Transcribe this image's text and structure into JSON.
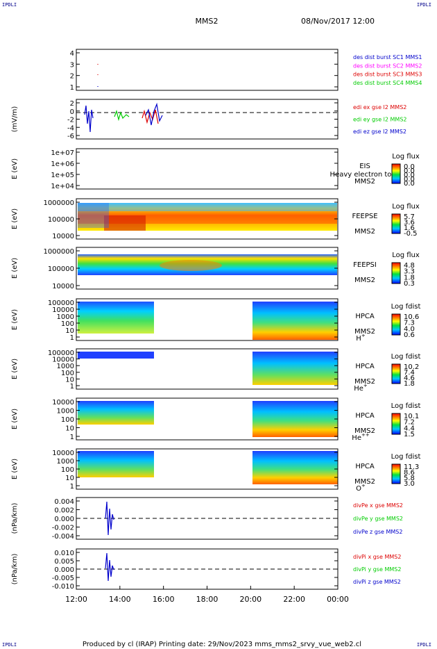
{
  "corners": {
    "top_left": "IPDLI",
    "top_right": "IPDLI",
    "bottom_left": "IPDLI",
    "bottom_right": "IPDLI"
  },
  "header": {
    "title": "MMS2",
    "datetime": "08/Nov/2017 12:00"
  },
  "footer": {
    "text": "Produced by cl (IRAP)   Printing date: 29/Nov/2023   mms_mms2_srvy_vue_web2.cl"
  },
  "colors": {
    "blue": "#0000cc",
    "magenta": "#ff00ff",
    "red": "#dd0000",
    "green": "#00cc00",
    "axis": "#000000"
  },
  "chart_data": [
    {
      "type": "line",
      "title": "",
      "ylabel": "",
      "yticks": [
        "4",
        "3",
        "2",
        "1"
      ],
      "ylim": [
        0.5,
        4.5
      ],
      "legend": [
        {
          "name": "des dist burst SC1 MMS1",
          "color": "#0000cc"
        },
        {
          "name": "des dist burst SC2 MMS2",
          "color": "#ff00ff"
        },
        {
          "name": "des dist burst SC3 MMS3",
          "color": "#dd0000"
        },
        {
          "name": "des dist burst SC4 MMS4",
          "color": "#00cc00"
        }
      ]
    },
    {
      "type": "line",
      "ylabel": "(mV/m)",
      "yticks": [
        "2",
        "0",
        "-2",
        "-4",
        "-6"
      ],
      "ylim": [
        -7,
        3.5
      ],
      "legend": [
        {
          "name": "edi ex gse l2 MMS2",
          "color": "#dd0000"
        },
        {
          "name": "edi ey gse l2 MMS2",
          "color": "#00cc00"
        },
        {
          "name": "edi ez gse l2 MMS2",
          "color": "#0000cc"
        }
      ]
    },
    {
      "type": "heatmap",
      "ylabel": "E (eV)",
      "yticks": [
        "1e+07",
        "1e+06",
        "1e+05",
        "1e+04"
      ],
      "labels": [
        "EIS",
        "MMS2"
      ],
      "overlay_text": "Heavy electron to",
      "colorbar_title": "Log flux",
      "colorbar_ticks": [
        "0.0",
        "0.0",
        "0.0",
        "0.0",
        "0.0"
      ]
    },
    {
      "type": "heatmap",
      "ylabel": "E (eV)",
      "yticks": [
        "1000000",
        "100000",
        "10000"
      ],
      "labels": [
        "FEEPSE",
        "MMS2"
      ],
      "colorbar_title": "Log flux",
      "colorbar_ticks": [
        "5.7",
        "3.6",
        "1.6",
        "-0.5"
      ]
    },
    {
      "type": "heatmap",
      "ylabel": "E (eV)",
      "yticks": [
        "1000000",
        "100000",
        "10000"
      ],
      "labels": [
        "FEEPSI",
        "MMS2"
      ],
      "colorbar_title": "Log flux",
      "colorbar_ticks": [
        "4.8",
        "3.3",
        "1.8",
        "0.3"
      ]
    },
    {
      "type": "heatmap",
      "ylabel": "E (eV)",
      "yticks": [
        "100000",
        "10000",
        "1000",
        "100",
        "10",
        "1"
      ],
      "labels": [
        "HPCA",
        "MMS2"
      ],
      "species": "H",
      "species_sup": "+",
      "colorbar_title": "Log fdist",
      "colorbar_ticks": [
        "10.6",
        "7.3",
        "4.0",
        "0.6"
      ]
    },
    {
      "type": "heatmap",
      "ylabel": "E (eV)",
      "yticks": [
        "100000",
        "10000",
        "1000",
        "100",
        "10",
        "1"
      ],
      "labels": [
        "HPCA",
        "MMS2"
      ],
      "species": "He",
      "species_sup": "+",
      "colorbar_title": "Log fdist",
      "colorbar_ticks": [
        "10.2",
        "7.4",
        "4.6",
        "1.8"
      ]
    },
    {
      "type": "heatmap",
      "ylabel": "E (eV)",
      "yticks": [
        "10000",
        "1000",
        "100",
        "10",
        "1"
      ],
      "labels": [
        "HPCA",
        "MMS2"
      ],
      "species": "He",
      "species_sup": "++",
      "colorbar_title": "Log fdist",
      "colorbar_ticks": [
        "10.1",
        "7.2",
        "4.4",
        "1.5"
      ]
    },
    {
      "type": "heatmap",
      "ylabel": "E (eV)",
      "yticks": [
        "10000",
        "1000",
        "100",
        "10",
        "1"
      ],
      "labels": [
        "HPCA",
        "MMS2"
      ],
      "species": "O",
      "species_sup": "+",
      "colorbar_title": "Log fdist",
      "colorbar_ticks": [
        "11.3",
        "8.6",
        "5.8",
        "3.0"
      ]
    },
    {
      "type": "line",
      "ylabel": "(nPa/km)",
      "yticks": [
        "0.004",
        "0.002",
        "0.000",
        "-0.002",
        "-0.004"
      ],
      "ylim": [
        -0.005,
        0.005
      ],
      "legend": [
        {
          "name": "divPe x gse MMS2",
          "color": "#dd0000"
        },
        {
          "name": "divPe y gse MMS2",
          "color": "#00cc00"
        },
        {
          "name": "divPe z gse MMS2",
          "color": "#0000cc"
        }
      ]
    },
    {
      "type": "line",
      "ylabel": "(nPa/km)",
      "yticks": [
        "0.010",
        "0.005",
        "0.000",
        "-0.005",
        "-0.010"
      ],
      "ylim": [
        -0.012,
        0.012
      ],
      "legend": [
        {
          "name": "divPi x gse MMS2",
          "color": "#dd0000"
        },
        {
          "name": "divPi y gse MMS2",
          "color": "#00cc00"
        },
        {
          "name": "divPi z gse MMS2",
          "color": "#0000cc"
        }
      ]
    }
  ],
  "xaxis": {
    "ticks": [
      "12:00",
      "14:00",
      "16:00",
      "18:00",
      "20:00",
      "22:00",
      "00:00"
    ]
  }
}
